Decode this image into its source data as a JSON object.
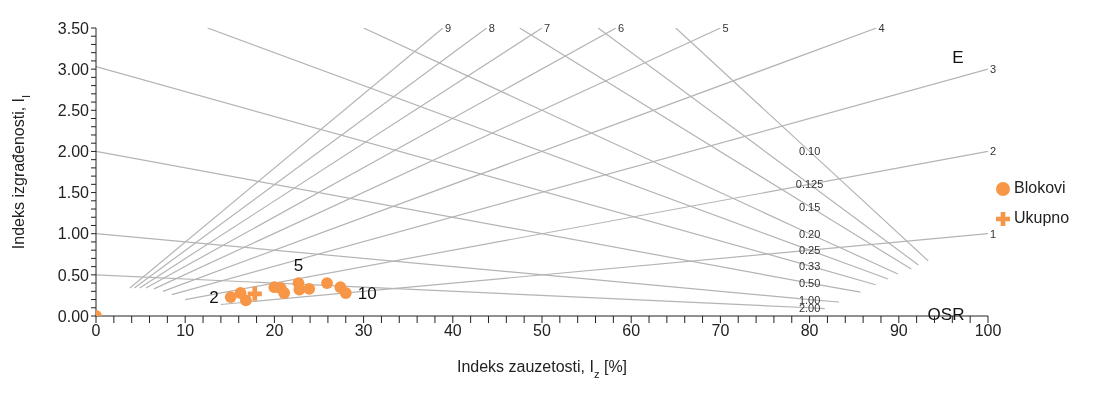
{
  "chart_data": {
    "type": "scatter",
    "xlabel": "Indeks zauzetosti, I$_{z}$  [%]",
    "ylabel": "Indeks izgrađenosti, I$_{I}$",
    "xlim": [
      0,
      100
    ],
    "xticks": [
      0,
      {
        "value": 2,
        "label": null
      },
      {
        "value": 4,
        "label": null
      },
      {
        "value": 6,
        "label": null
      },
      {
        "value": 8,
        "label": null
      },
      10,
      {
        "value": 12,
        "label": null
      },
      {
        "value": 14,
        "label": null
      },
      {
        "value": 16,
        "label": null
      },
      {
        "value": 18,
        "label": null
      },
      20,
      {
        "value": 22,
        "label": null
      },
      {
        "value": 24,
        "label": null
      },
      {
        "value": 26,
        "label": null
      },
      {
        "value": 28,
        "label": null
      },
      30,
      {
        "value": 32,
        "label": null
      },
      {
        "value": 34,
        "label": null
      },
      {
        "value": 36,
        "label": null
      },
      {
        "value": 38,
        "label": null
      },
      40,
      {
        "value": 42,
        "label": null
      },
      {
        "value": 44,
        "label": null
      },
      {
        "value": 46,
        "label": null
      },
      {
        "value": 48,
        "label": null
      },
      50,
      {
        "value": 52,
        "label": null
      },
      {
        "value": 54,
        "label": null
      },
      {
        "value": 56,
        "label": null
      },
      {
        "value": 58,
        "label": null
      },
      60,
      {
        "value": 62,
        "label": null
      },
      {
        "value": 64,
        "label": null
      },
      {
        "value": 66,
        "label": null
      },
      {
        "value": 68,
        "label": null
      },
      70,
      {
        "value": 72,
        "label": null
      },
      {
        "value": 74,
        "label": null
      },
      {
        "value": 76,
        "label": null
      },
      {
        "value": 78,
        "label": null
      },
      80,
      {
        "value": 82,
        "label": null
      },
      {
        "value": 84,
        "label": null
      },
      {
        "value": 86,
        "label": null
      },
      {
        "value": 88,
        "label": null
      },
      90,
      {
        "value": 92,
        "label": null
      },
      {
        "value": 94,
        "label": null
      },
      {
        "value": 96,
        "label": null
      },
      {
        "value": 98,
        "label": null
      },
      100
    ],
    "ylim": [
      0,
      3.5
    ],
    "yticks": [
      {
        "value": 0,
        "label": "0.00"
      },
      {
        "value": 0.1,
        "label": null
      },
      {
        "value": 0.2,
        "label": null
      },
      {
        "value": 0.3,
        "label": null
      },
      {
        "value": 0.4,
        "label": null
      },
      {
        "value": 0.5,
        "label": "0.50"
      },
      {
        "value": 0.6,
        "label": null
      },
      {
        "value": 0.7,
        "label": null
      },
      {
        "value": 0.8,
        "label": null
      },
      {
        "value": 0.9,
        "label": null
      },
      {
        "value": 1,
        "label": "1.00"
      },
      {
        "value": 1.1,
        "label": null
      },
      {
        "value": 1.2,
        "label": null
      },
      {
        "value": 1.3,
        "label": null
      },
      {
        "value": 1.4,
        "label": null
      },
      {
        "value": 1.5,
        "label": "1.50"
      },
      {
        "value": 1.6,
        "label": null
      },
      {
        "value": 1.7,
        "label": null
      },
      {
        "value": 1.8,
        "label": null
      },
      {
        "value": 1.9,
        "label": null
      },
      {
        "value": 2,
        "label": "2.00"
      },
      {
        "value": 2.1,
        "label": null
      },
      {
        "value": 2.2,
        "label": null
      },
      {
        "value": 2.3,
        "label": null
      },
      {
        "value": 2.4,
        "label": null
      },
      {
        "value": 2.5,
        "label": "2.50"
      },
      {
        "value": 2.6,
        "label": null
      },
      {
        "value": 2.7,
        "label": null
      },
      {
        "value": 2.8,
        "label": null
      },
      {
        "value": 2.9,
        "label": null
      },
      {
        "value": 3,
        "label": "3.00"
      },
      {
        "value": 3.1,
        "label": null
      },
      {
        "value": 3.2,
        "label": null
      },
      {
        "value": 3.3,
        "label": null
      },
      {
        "value": 3.4,
        "label": null
      },
      {
        "value": 3.5,
        "label": "3.50"
      }
    ],
    "grid": false,
    "legend": "right",
    "series": [
      {
        "name": "Blokovi",
        "marker": "circle",
        "color": "#f79646",
        "x": [
          0,
          15.1,
          16.2,
          16.8,
          20.0,
          20.7,
          21.1,
          22.7,
          22.8,
          23.9,
          25.9,
          27.4,
          28.0
        ],
        "values": [
          0,
          0.23,
          0.28,
          0.19,
          0.35,
          0.34,
          0.28,
          0.4,
          0.32,
          0.33,
          0.4,
          0.35,
          0.28
        ]
      },
      {
        "name": "Ukupno",
        "marker": "cross",
        "color": "#f79646",
        "x": [
          17.8
        ],
        "values": [
          0.27
        ]
      },
      {
        "name": "1",
        "type": "line",
        "color": "#b4b4b4",
        "x": [
          14,
          100
        ],
        "values": [
          0.14,
          1
        ]
      },
      {
        "name": "2",
        "type": "line",
        "color": "#b4b4b4",
        "x": [
          10,
          100
        ],
        "values": [
          0.2,
          2
        ]
      },
      {
        "name": "3",
        "type": "line",
        "color": "#b4b4b4",
        "x": [
          8.5,
          100
        ],
        "values": [
          0.26,
          3
        ]
      },
      {
        "name": "4",
        "type": "line",
        "color": "#b4b4b4",
        "x": [
          7.5,
          87.5
        ],
        "values": [
          0.3,
          3.5
        ]
      },
      {
        "name": "5",
        "type": "line",
        "color": "#b4b4b4",
        "x": [
          6.5,
          70
        ],
        "values": [
          0.33,
          3.5
        ]
      },
      {
        "name": "6",
        "type": "line",
        "color": "#b4b4b4",
        "x": [
          5.6,
          58.3
        ],
        "values": [
          0.34,
          3.5
        ]
      },
      {
        "name": "7",
        "type": "line",
        "color": "#b4b4b4",
        "x": [
          4.9,
          50
        ],
        "values": [
          0.34,
          3.5
        ]
      },
      {
        "name": "8",
        "type": "line",
        "color": "#b4b4b4",
        "x": [
          4.3,
          43.8
        ],
        "values": [
          0.34,
          3.5
        ]
      },
      {
        "name": "9",
        "type": "line",
        "color": "#b4b4b4",
        "x": [
          3.8,
          38.9
        ],
        "values": [
          0.34,
          3.5
        ]
      },
      {
        "name": "0.10",
        "type": "line",
        "color": "#b4b4b4",
        "x": [
          65,
          80,
          93.3
        ],
        "values": [
          3.5,
          2,
          0.67
        ]
      },
      {
        "name": "0.125",
        "type": "line",
        "color": "#b4b4b4",
        "x": [
          56.3,
          80,
          92.2
        ],
        "values": [
          3.5,
          1.6,
          0.62
        ]
      },
      {
        "name": "0.15",
        "type": "line",
        "color": "#b4b4b4",
        "x": [
          47.5,
          80,
          91.4
        ],
        "values": [
          3.5,
          1.33,
          0.57
        ]
      },
      {
        "name": "0.20",
        "type": "line",
        "color": "#b4b4b4",
        "x": [
          30,
          80,
          89.9
        ],
        "values": [
          3.5,
          1,
          0.51
        ]
      },
      {
        "name": "0.25",
        "type": "line",
        "color": "#b4b4b4",
        "x": [
          12.5,
          80,
          88.8
        ],
        "values": [
          3.5,
          0.8,
          0.45
        ]
      },
      {
        "name": "0.33",
        "type": "line",
        "color": "#b4b4b4",
        "x": [
          0,
          80,
          87.4
        ],
        "values": [
          3.03,
          0.61,
          0.38
        ]
      },
      {
        "name": "0.50",
        "type": "line",
        "color": "#b4b4b4",
        "x": [
          0,
          80,
          85.7
        ],
        "values": [
          2,
          0.4,
          0.29
        ]
      },
      {
        "name": "1.00",
        "type": "line",
        "color": "#b4b4b4",
        "x": [
          0,
          80,
          83.3
        ],
        "values": [
          1,
          0.2,
          0.17
        ]
      },
      {
        "name": "2.00",
        "type": "line",
        "color": "#b4b4b4",
        "x": [
          0,
          80,
          81.7
        ],
        "values": [
          0.5,
          0.1,
          0.09
        ]
      }
    ],
    "annotations": [
      {
        "text": "2",
        "x": 15.1,
        "y": 0.23
      },
      {
        "text": "5",
        "x": 22.7,
        "y": 0.4
      },
      {
        "text": "10",
        "x": 28.0,
        "y": 0.28
      },
      "E",
      "OSR"
    ]
  }
}
